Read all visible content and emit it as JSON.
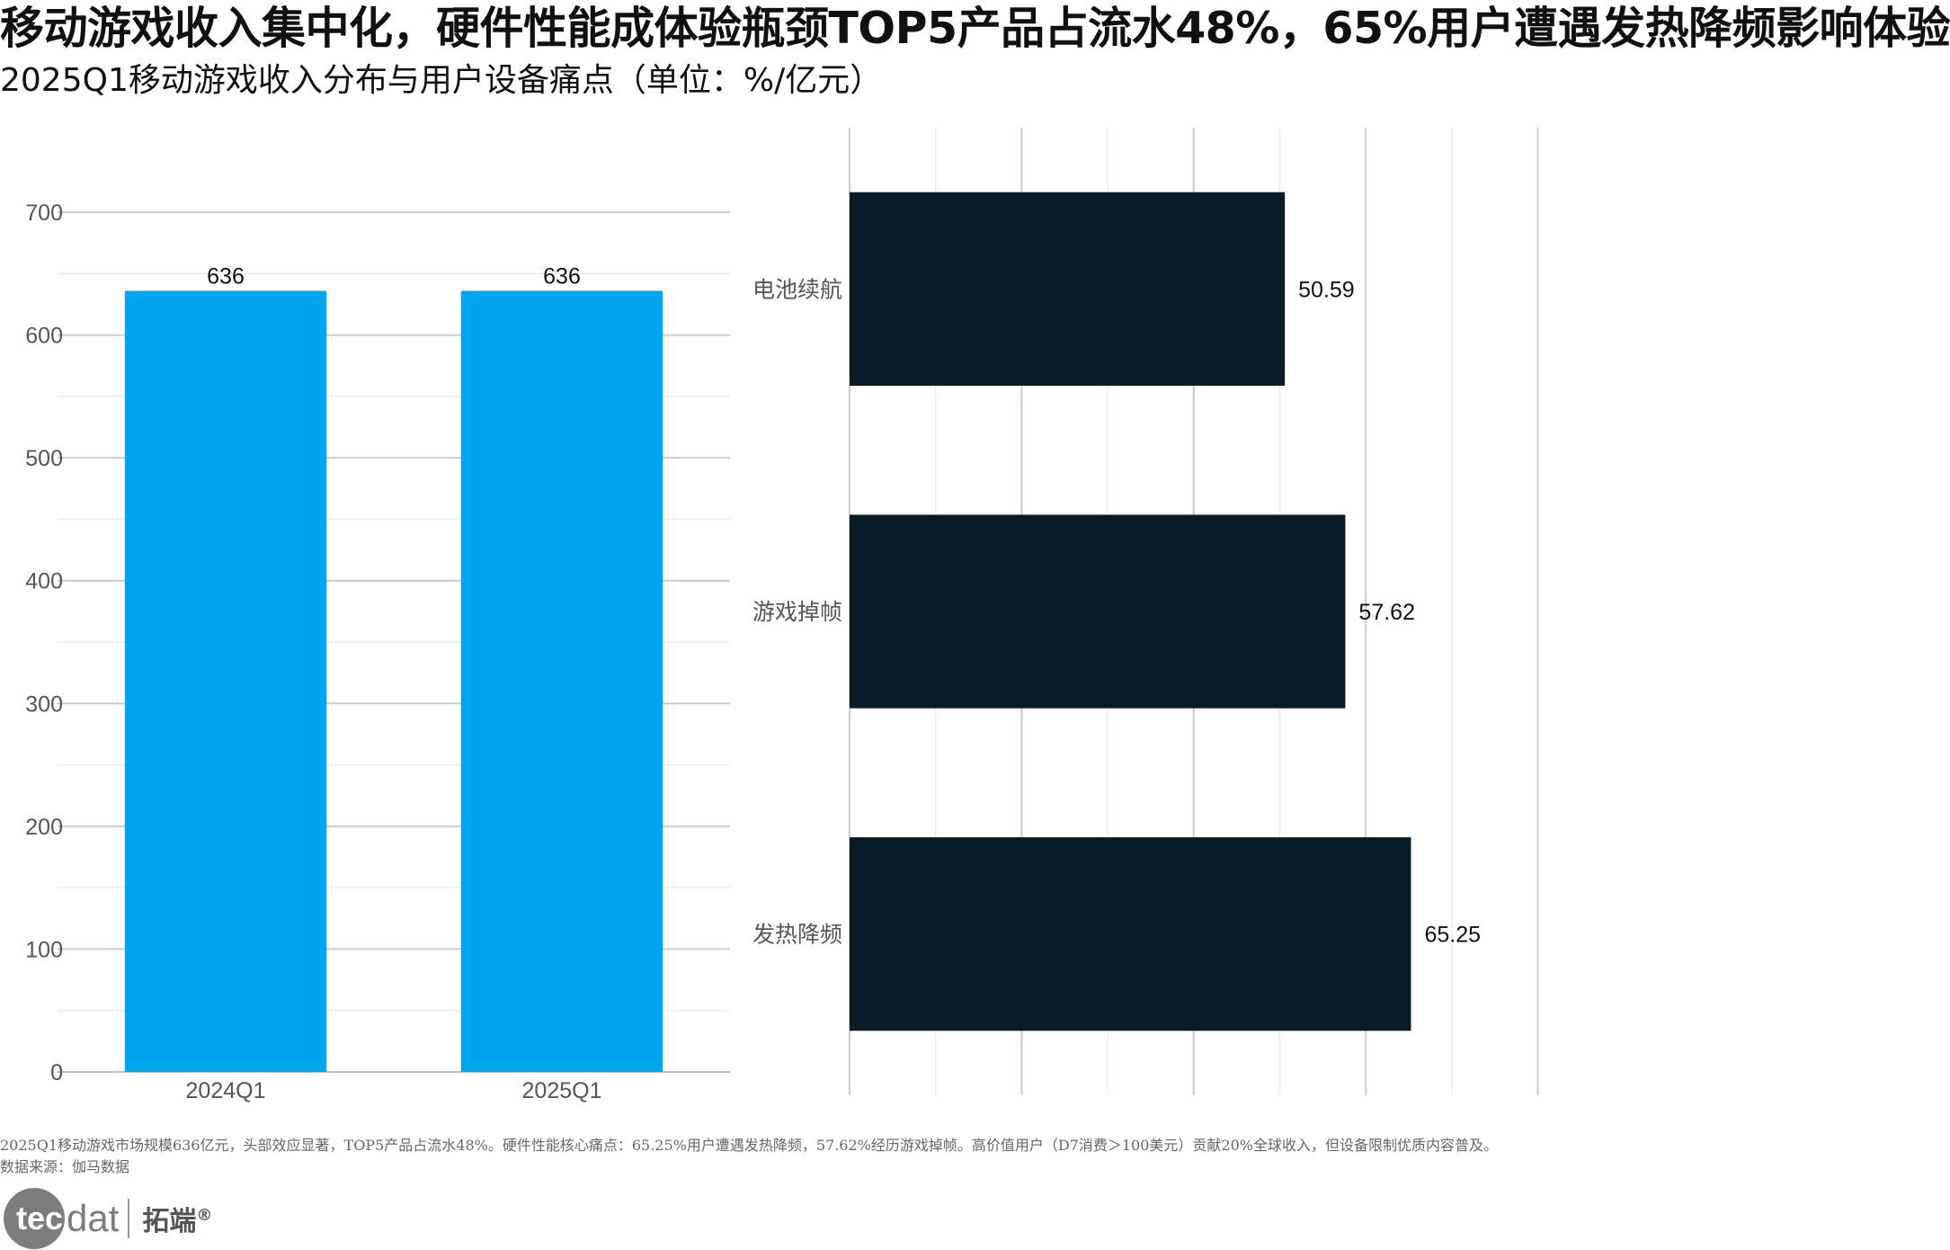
{
  "title": "移动游戏收入集中化，硬件性能成体验瓶颈TOP5产品占流水48%，65%用户遭遇发热降频影响体验",
  "subtitle": "2025Q1移动游戏收入分布与用户设备痛点（单位：%/亿元）",
  "chart_data": [
    {
      "type": "bar",
      "categories": [
        "2024Q1",
        "2025Q1"
      ],
      "values": [
        636,
        636
      ],
      "ylim": [
        0,
        700
      ],
      "yticks": [
        0,
        100,
        200,
        300,
        400,
        500,
        600,
        700
      ],
      "color": "#00a6ed",
      "grid": true
    },
    {
      "type": "bar",
      "orientation": "horizontal",
      "categories": [
        "电池续航",
        "游戏掉帧",
        "发热降频"
      ],
      "values": [
        50.59,
        57.62,
        65.25
      ],
      "color": "#081b27",
      "grid": true
    }
  ],
  "footnote": {
    "line1": "2025Q1移动游戏市场规模636亿元，头部效应显著，TOP5产品占流水48%。硬件性能核心痛点：65.25%用户遭遇发热降频，57.62%经历游戏掉帧。高价值用户（D7消费＞100美元）贡献20%全球收入，但设备限制优质内容普及。",
    "line2": "数据来源：伽马数据"
  },
  "logo": {
    "brand_circle": "tec",
    "brand_rest": "dat",
    "brand_cn": "拓端",
    "reg": "®"
  }
}
